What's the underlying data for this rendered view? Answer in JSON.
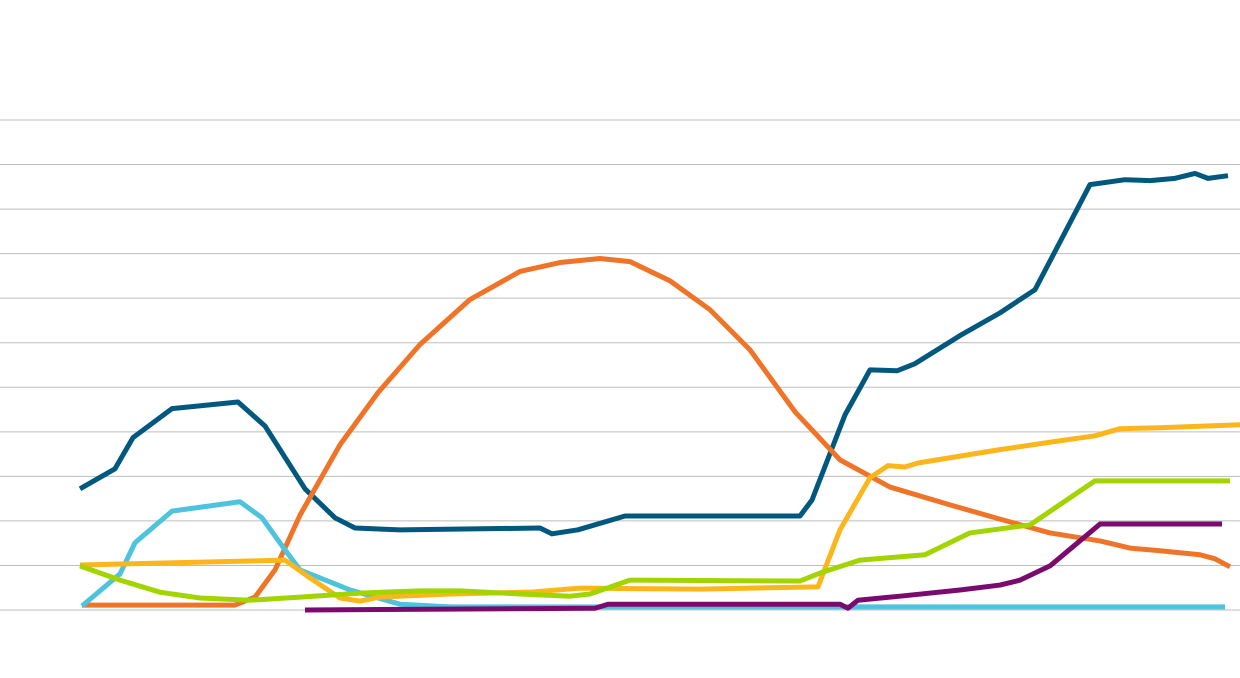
{
  "chart_data": {
    "type": "line",
    "xlim": [
      0,
      124
    ],
    "ylim": [
      0,
      11
    ],
    "yticks": [
      0,
      1,
      2,
      3,
      4,
      5,
      6,
      7,
      8,
      9,
      10,
      11
    ],
    "grid": true,
    "series": [
      {
        "color": "#00587f",
        "x": [
          8,
          11.5,
          13.3,
          17.2,
          23.8,
          26.5,
          30.5,
          33.5,
          35.5,
          40,
          54,
          55.2,
          57.8,
          62.5,
          80,
          81.2,
          84.5,
          87,
          89.7,
          91.5,
          96,
          100,
          103.5,
          109,
          112.5,
          115,
          117.5,
          119.5,
          120.8,
          122.8
        ],
        "values": [
          2.72,
          3.17,
          3.87,
          4.52,
          4.67,
          4.13,
          2.72,
          2.07,
          1.84,
          1.8,
          1.84,
          1.71,
          1.8,
          2.11,
          2.11,
          2.47,
          4.38,
          5.39,
          5.37,
          5.53,
          6.16,
          6.67,
          7.19,
          9.55,
          9.66,
          9.64,
          9.69,
          9.8,
          9.69,
          9.75
        ]
      },
      {
        "color": "#f07427",
        "x": [
          8.2,
          23.5,
          25.5,
          27.5,
          30,
          34,
          37.8,
          42,
          47,
          52,
          56,
          60,
          63,
          67,
          71,
          75,
          79.5,
          84,
          89,
          95,
          100,
          105,
          110,
          113,
          116,
          120,
          121.5,
          123
        ],
        "values": [
          0.11,
          0.11,
          0.29,
          0.9,
          2.13,
          3.71,
          4.88,
          5.96,
          6.97,
          7.6,
          7.8,
          7.89,
          7.82,
          7.39,
          6.74,
          5.84,
          4.45,
          3.37,
          2.76,
          2.36,
          2.04,
          1.73,
          1.55,
          1.39,
          1.33,
          1.24,
          1.15,
          0.97
        ]
      },
      {
        "color": "#4ec3dd",
        "x": [
          8.2,
          12,
          13.5,
          17.2,
          24,
          26.2,
          28.5,
          30,
          35,
          40,
          45,
          122.5
        ],
        "values": [
          0.09,
          0.81,
          1.51,
          2.22,
          2.43,
          2.07,
          1.35,
          0.9,
          0.45,
          0.13,
          0.07,
          0.07
        ]
      },
      {
        "color": "#fbb61c",
        "x": [
          8,
          28.5,
          31,
          34,
          36,
          38,
          45,
          53,
          58,
          70,
          81.8,
          84,
          87,
          88.8,
          90.5,
          91.8,
          100,
          106,
          109.5,
          112,
          116,
          124
        ],
        "values": [
          1.01,
          1.12,
          0.72,
          0.27,
          0.2,
          0.29,
          0.36,
          0.4,
          0.49,
          0.47,
          0.52,
          1.8,
          2.97,
          3.24,
          3.21,
          3.3,
          3.6,
          3.8,
          3.91,
          4.07,
          4.09,
          4.16
        ]
      },
      {
        "color": "#a2d400",
        "x": [
          8,
          12,
          16,
          20,
          25,
          30,
          36,
          42,
          46,
          52,
          57,
          59,
          63,
          80,
          82,
          86,
          92.5,
          97,
          103,
          109.5,
          123
        ],
        "values": [
          0.99,
          0.67,
          0.4,
          0.27,
          0.22,
          0.29,
          0.38,
          0.43,
          0.43,
          0.36,
          0.31,
          0.36,
          0.67,
          0.65,
          0.83,
          1.12,
          1.24,
          1.73,
          1.91,
          2.9,
          2.9
        ]
      },
      {
        "color": "#7b0a6f",
        "x": [
          30.5,
          59.5,
          60.8,
          84,
          84.8,
          85.8,
          90,
          96,
          100,
          102,
          105,
          110,
          122.2
        ],
        "values": [
          0,
          0.04,
          0.13,
          0.13,
          0.04,
          0.22,
          0.31,
          0.45,
          0.56,
          0.67,
          0.99,
          1.93,
          1.93
        ]
      }
    ]
  }
}
